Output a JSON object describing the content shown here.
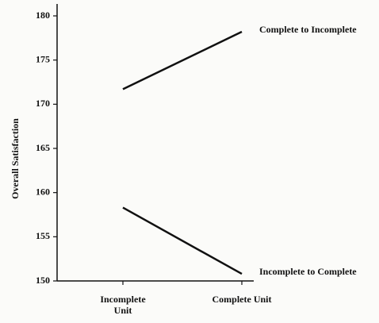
{
  "chart_data": {
    "type": "line",
    "y_label": "Overall Satisfaction",
    "categories": [
      "Incomplete Unit",
      "Complete Unit"
    ],
    "series": [
      {
        "name": "Complete to Incomplete",
        "color": "#111111",
        "values": [
          171.7,
          178.2
        ]
      },
      {
        "name": "Incomplete to Complete",
        "color": "#111111",
        "values": [
          158.3,
          150.8
        ]
      }
    ],
    "ylim": [
      150,
      180
    ],
    "yticks": [
      150,
      155,
      160,
      165,
      170,
      175,
      180
    ]
  }
}
